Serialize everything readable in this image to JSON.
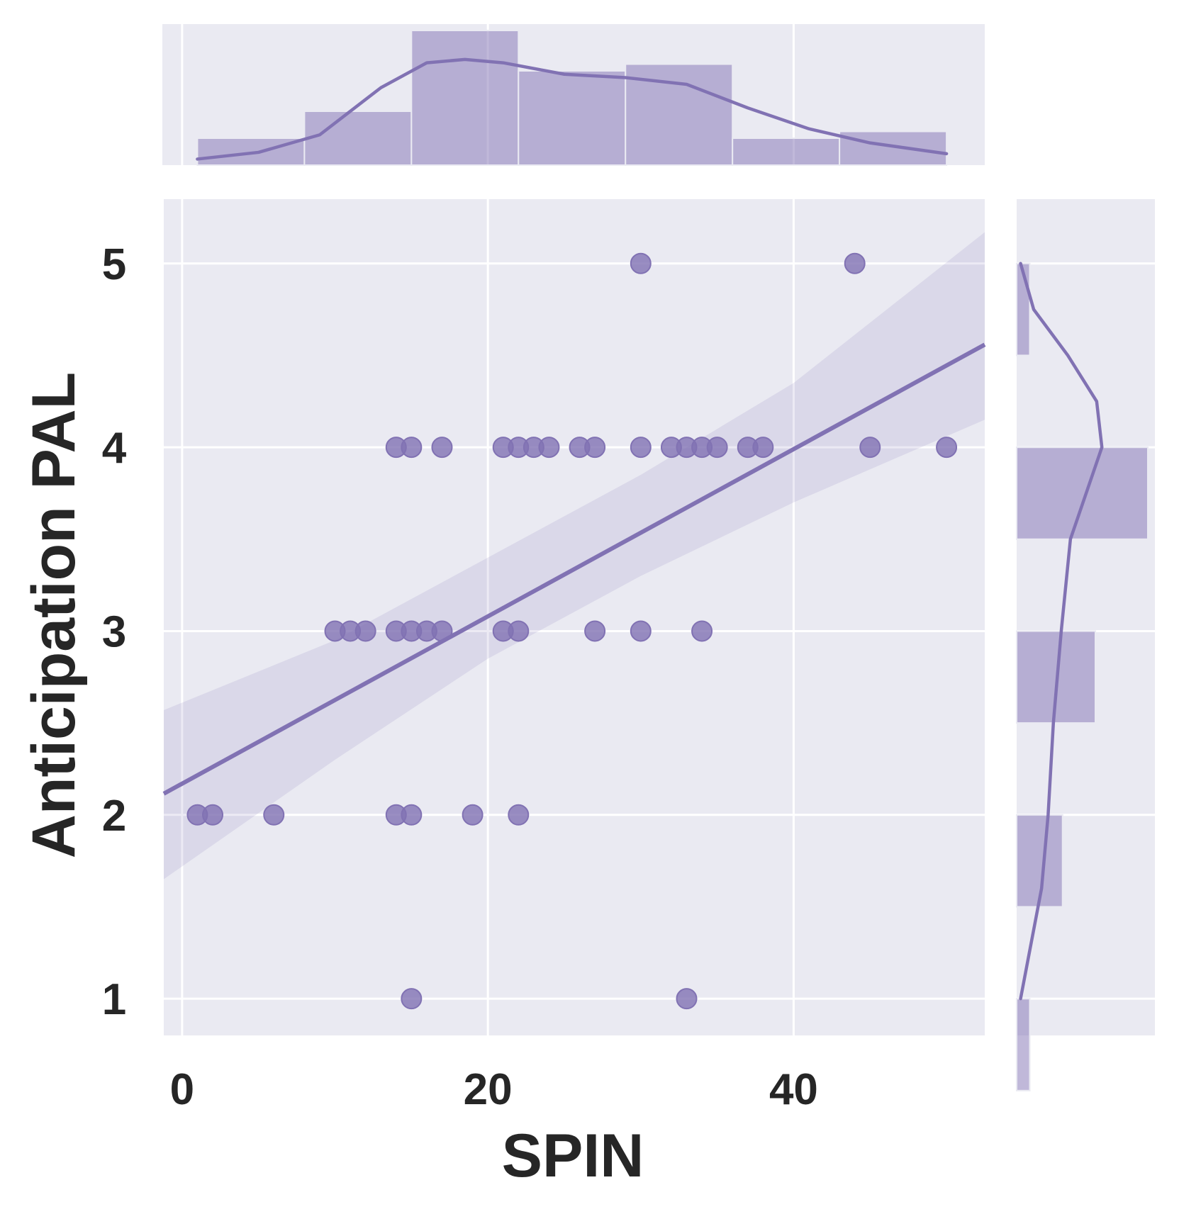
{
  "chart_data": {
    "type": "scatter",
    "kind": "joint plot with regression line, 95% confidence band and marginal histograms with KDE",
    "xlabel": "SPIN",
    "ylabel": "Anticipation PAL",
    "xlim": [
      -1.2,
      52.5
    ],
    "ylim": [
      0.8,
      5.35
    ],
    "xticks": [
      "0",
      "20",
      "40"
    ],
    "yticks": [
      "1",
      "2",
      "3",
      "4",
      "5"
    ],
    "grid": true,
    "colors": {
      "accent": "#8172b3",
      "background": "#eaeaf2",
      "grid": "#ffffff",
      "text": "#262626"
    },
    "series": [
      {
        "type": "scatter",
        "points": [
          [
            30,
            5
          ],
          [
            44,
            5
          ],
          [
            14,
            4
          ],
          [
            15,
            4
          ],
          [
            17,
            4
          ],
          [
            21,
            4
          ],
          [
            22,
            4
          ],
          [
            23,
            4
          ],
          [
            24,
            4
          ],
          [
            26,
            4
          ],
          [
            27,
            4
          ],
          [
            30,
            4
          ],
          [
            32,
            4
          ],
          [
            33,
            4
          ],
          [
            34,
            4
          ],
          [
            35,
            4
          ],
          [
            37,
            4
          ],
          [
            38,
            4
          ],
          [
            45,
            4
          ],
          [
            50,
            4
          ],
          [
            10,
            3
          ],
          [
            11,
            3
          ],
          [
            12,
            3
          ],
          [
            14,
            3
          ],
          [
            15,
            3
          ],
          [
            16,
            3
          ],
          [
            17,
            3
          ],
          [
            21,
            3
          ],
          [
            22,
            3
          ],
          [
            27,
            3
          ],
          [
            30,
            3
          ],
          [
            34,
            3
          ],
          [
            1,
            2
          ],
          [
            2,
            2
          ],
          [
            6,
            2
          ],
          [
            14,
            2
          ],
          [
            15,
            2
          ],
          [
            19,
            2
          ],
          [
            22,
            2
          ],
          [
            15,
            1
          ],
          [
            33,
            1
          ]
        ]
      }
    ],
    "regression": {
      "intercept": 2.17,
      "slope": 0.0455
    },
    "confidence_band": {
      "x": [
        -1.2,
        10,
        20,
        30,
        40,
        52.5
      ],
      "lower": [
        1.65,
        2.3,
        2.85,
        3.3,
        3.7,
        4.15
      ],
      "upper": [
        2.57,
        2.95,
        3.4,
        3.85,
        4.35,
        5.17
      ]
    },
    "marginal_x": {
      "type": "histogram",
      "bin_edges": [
        1,
        8,
        15,
        22,
        29,
        36,
        43,
        50
      ],
      "counts": [
        4,
        8,
        20,
        14,
        15,
        4,
        5
      ],
      "kde_x": [
        1,
        5,
        9,
        13,
        16,
        18.5,
        21,
        25,
        29,
        33,
        37,
        41,
        45,
        50
      ],
      "kde_y": [
        0.9,
        1.9,
        4.5,
        11.5,
        15.2,
        15.7,
        15.2,
        13.5,
        13,
        12,
        8.5,
        5.4,
        3.3,
        1.7
      ]
    },
    "marginal_y": {
      "type": "histogram",
      "bin_edges": [
        0.5,
        1.0,
        1.5,
        2.0,
        2.5,
        3.0,
        3.5,
        4.0,
        4.5,
        5.0
      ],
      "counts": [
        2,
        0,
        7,
        0,
        12,
        0,
        20,
        0,
        2
      ],
      "kde_y": [
        1,
        1.3,
        1.6,
        2,
        2.5,
        3,
        3.5,
        4,
        4.25,
        4.5,
        4.75,
        5
      ],
      "kde_x": [
        0.6,
        2.2,
        3.8,
        4.8,
        5.6,
        6.8,
        8.2,
        13,
        12.2,
        7.8,
        2.6,
        0.6
      ]
    }
  }
}
